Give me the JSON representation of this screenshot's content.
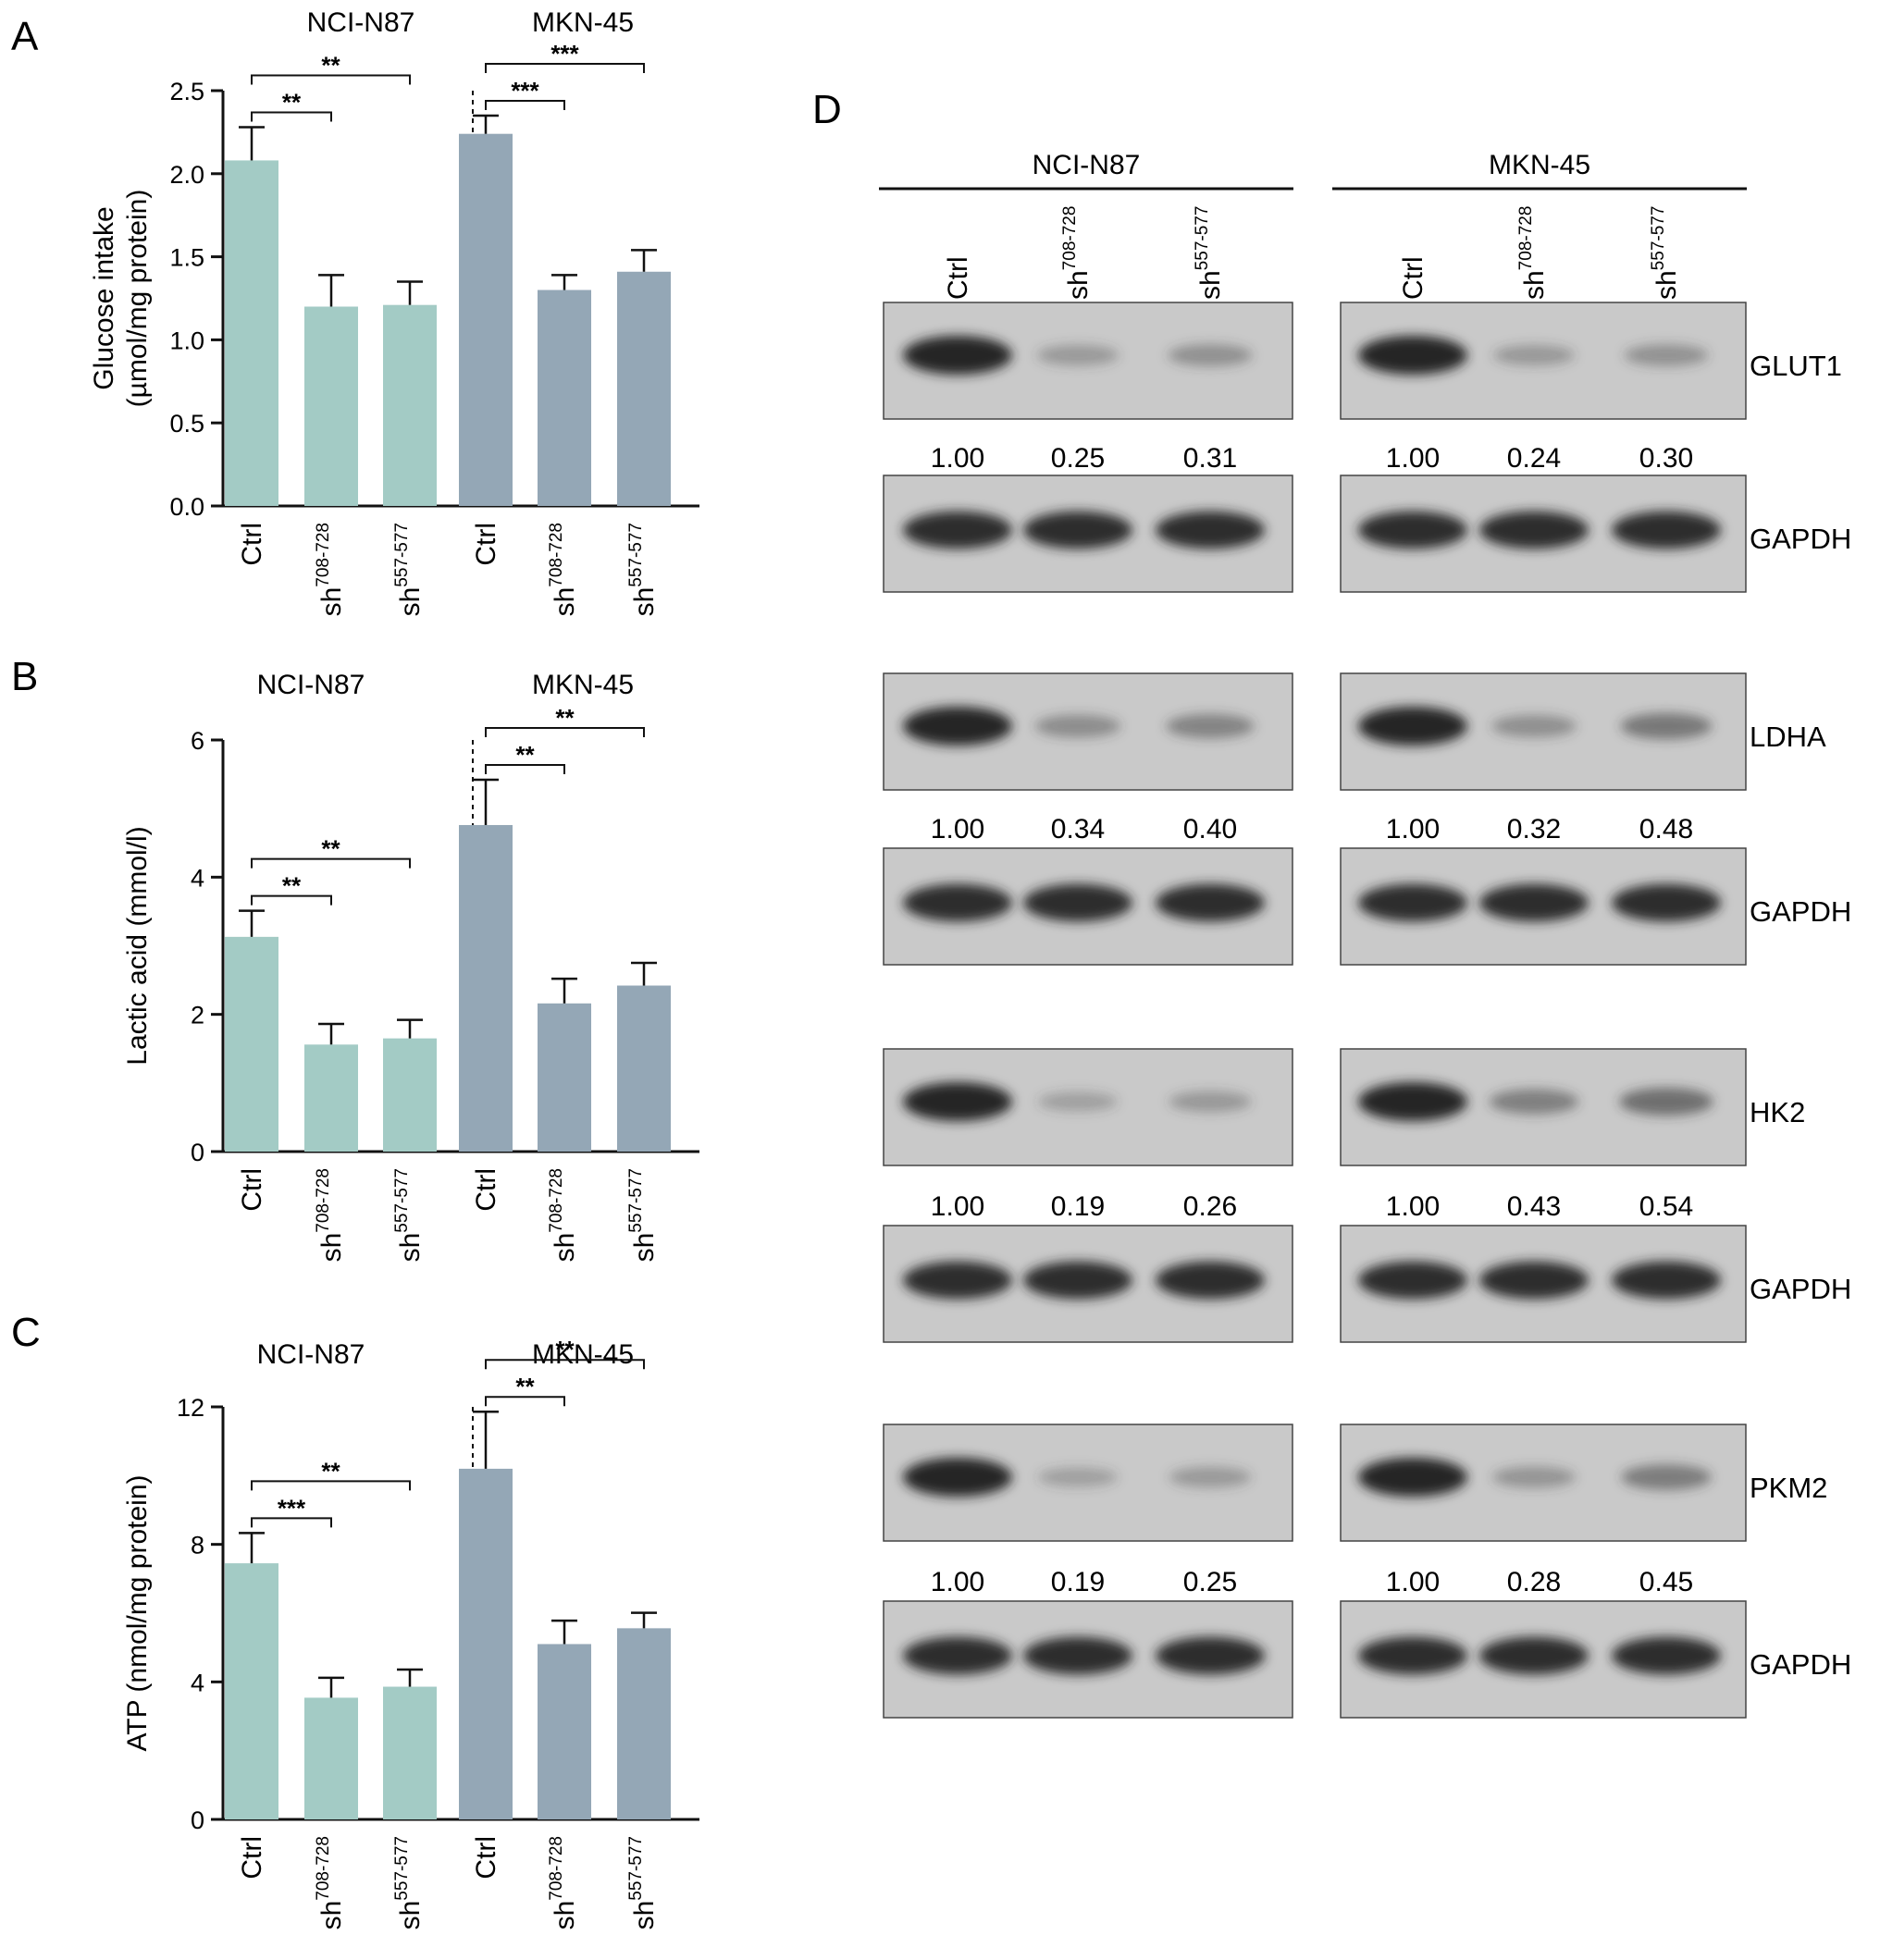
{
  "panel_letters": [
    "A",
    "B",
    "C",
    "D"
  ],
  "chart_data": [
    {
      "type": "bar",
      "panel": "A",
      "ylabel_line1": "Glucose intake",
      "ylabel_line2": "(µmol/mg protein)",
      "ylim": [
        0,
        2.5
      ],
      "yticks": [
        "0.0",
        "0.5",
        "1.0",
        "1.5",
        "2.0",
        "2.5"
      ],
      "ytick_values": [
        0,
        0.5,
        1.0,
        1.5,
        2.0,
        2.5
      ],
      "groups": [
        "NCI-N87",
        "MKN-45"
      ],
      "categories": [
        {
          "base": "Ctrl",
          "sup": ""
        },
        {
          "base": "sh",
          "sup": "708-728"
        },
        {
          "base": "sh",
          "sup": "557-577"
        }
      ],
      "series": [
        {
          "name": "NCI-N87",
          "color": "#a3cbc5",
          "values": [
            2.08,
            1.2,
            1.21
          ],
          "errors": [
            0.2,
            0.19,
            0.14
          ]
        },
        {
          "name": "MKN-45",
          "color": "#94a7b6",
          "values": [
            2.24,
            1.3,
            1.41
          ],
          "errors": [
            0.11,
            0.09,
            0.13
          ]
        }
      ],
      "significance": [
        {
          "group": 0,
          "from": 0,
          "to": 1,
          "label": "**"
        },
        {
          "group": 0,
          "from": 0,
          "to": 2,
          "label": "**"
        },
        {
          "group": 1,
          "from": 0,
          "to": 1,
          "label": "***"
        },
        {
          "group": 1,
          "from": 0,
          "to": 2,
          "label": "***"
        }
      ]
    },
    {
      "type": "bar",
      "panel": "B",
      "ylabel_line1": "Lactic acid (mmol/l)",
      "ylabel_line2": "",
      "ylim": [
        0,
        6
      ],
      "yticks": [
        "0",
        "2",
        "4",
        "6"
      ],
      "ytick_values": [
        0,
        2,
        4,
        6
      ],
      "groups": [
        "NCI-N87",
        "MKN-45"
      ],
      "categories": [
        {
          "base": "Ctrl",
          "sup": ""
        },
        {
          "base": "sh",
          "sup": "708-728"
        },
        {
          "base": "sh",
          "sup": "557-577"
        }
      ],
      "series": [
        {
          "name": "NCI-N87",
          "color": "#a3cbc5",
          "values": [
            3.13,
            1.56,
            1.65
          ],
          "errors": [
            0.38,
            0.3,
            0.27
          ]
        },
        {
          "name": "MKN-45",
          "color": "#94a7b6",
          "values": [
            4.76,
            2.16,
            2.42
          ],
          "errors": [
            0.66,
            0.36,
            0.33
          ]
        }
      ],
      "significance": [
        {
          "group": 0,
          "from": 0,
          "to": 1,
          "label": "**"
        },
        {
          "group": 0,
          "from": 0,
          "to": 2,
          "label": "**"
        },
        {
          "group": 1,
          "from": 0,
          "to": 1,
          "label": "**"
        },
        {
          "group": 1,
          "from": 0,
          "to": 2,
          "label": "**"
        }
      ]
    },
    {
      "type": "bar",
      "panel": "C",
      "ylabel_line1": "ATP (nmol/mg protein)",
      "ylabel_line2": "",
      "ylim": [
        0,
        12
      ],
      "yticks": [
        "0",
        "4",
        "8",
        "12"
      ],
      "ytick_values": [
        0,
        4,
        8,
        12
      ],
      "groups": [
        "NCI-N87",
        "MKN-45"
      ],
      "categories": [
        {
          "base": "Ctrl",
          "sup": ""
        },
        {
          "base": "sh",
          "sup": "708-728"
        },
        {
          "base": "sh",
          "sup": "557-577"
        }
      ],
      "series": [
        {
          "name": "NCI-N87",
          "color": "#a3cbc5",
          "values": [
            7.45,
            3.54,
            3.86
          ],
          "errors": [
            0.88,
            0.58,
            0.5
          ]
        },
        {
          "name": "MKN-45",
          "color": "#94a7b6",
          "values": [
            10.2,
            5.1,
            5.56
          ],
          "errors": [
            1.66,
            0.68,
            0.45
          ]
        }
      ],
      "significance": [
        {
          "group": 0,
          "from": 0,
          "to": 1,
          "label": "***"
        },
        {
          "group": 0,
          "from": 0,
          "to": 2,
          "label": "**"
        },
        {
          "group": 1,
          "from": 0,
          "to": 1,
          "label": "**"
        },
        {
          "group": 1,
          "from": 0,
          "to": 2,
          "label": "**"
        }
      ]
    },
    {
      "type": "table",
      "panel": "D",
      "cell_lines": [
        "NCI-N87",
        "MKN-45"
      ],
      "lanes": [
        {
          "base": "Ctrl",
          "sup": ""
        },
        {
          "base": "sh",
          "sup": "708-728"
        },
        {
          "base": "sh",
          "sup": "557-577"
        }
      ],
      "loading_control": "GAPDH",
      "proteins": [
        {
          "name": "GLUT1",
          "values": [
            [
              "1.00",
              "0.25",
              "0.31"
            ],
            [
              "1.00",
              "0.24",
              "0.30"
            ]
          ],
          "intensity": [
            [
              1.0,
              0.25,
              0.31
            ],
            [
              1.0,
              0.24,
              0.3
            ]
          ]
        },
        {
          "name": "LDHA",
          "values": [
            [
              "1.00",
              "0.34",
              "0.40"
            ],
            [
              "1.00",
              "0.32",
              "0.48"
            ]
          ],
          "intensity": [
            [
              1.0,
              0.34,
              0.4
            ],
            [
              1.0,
              0.32,
              0.48
            ]
          ]
        },
        {
          "name": "HK2",
          "values": [
            [
              "1.00",
              "0.19",
              "0.26"
            ],
            [
              "1.00",
              "0.43",
              "0.54"
            ]
          ],
          "intensity": [
            [
              1.0,
              0.19,
              0.26
            ],
            [
              1.0,
              0.43,
              0.54
            ]
          ]
        },
        {
          "name": "PKM2",
          "values": [
            [
              "1.00",
              "0.19",
              "0.25"
            ],
            [
              "1.00",
              "0.28",
              "0.45"
            ]
          ],
          "intensity": [
            [
              1.0,
              0.19,
              0.25
            ],
            [
              1.0,
              0.28,
              0.45
            ]
          ]
        }
      ]
    }
  ]
}
